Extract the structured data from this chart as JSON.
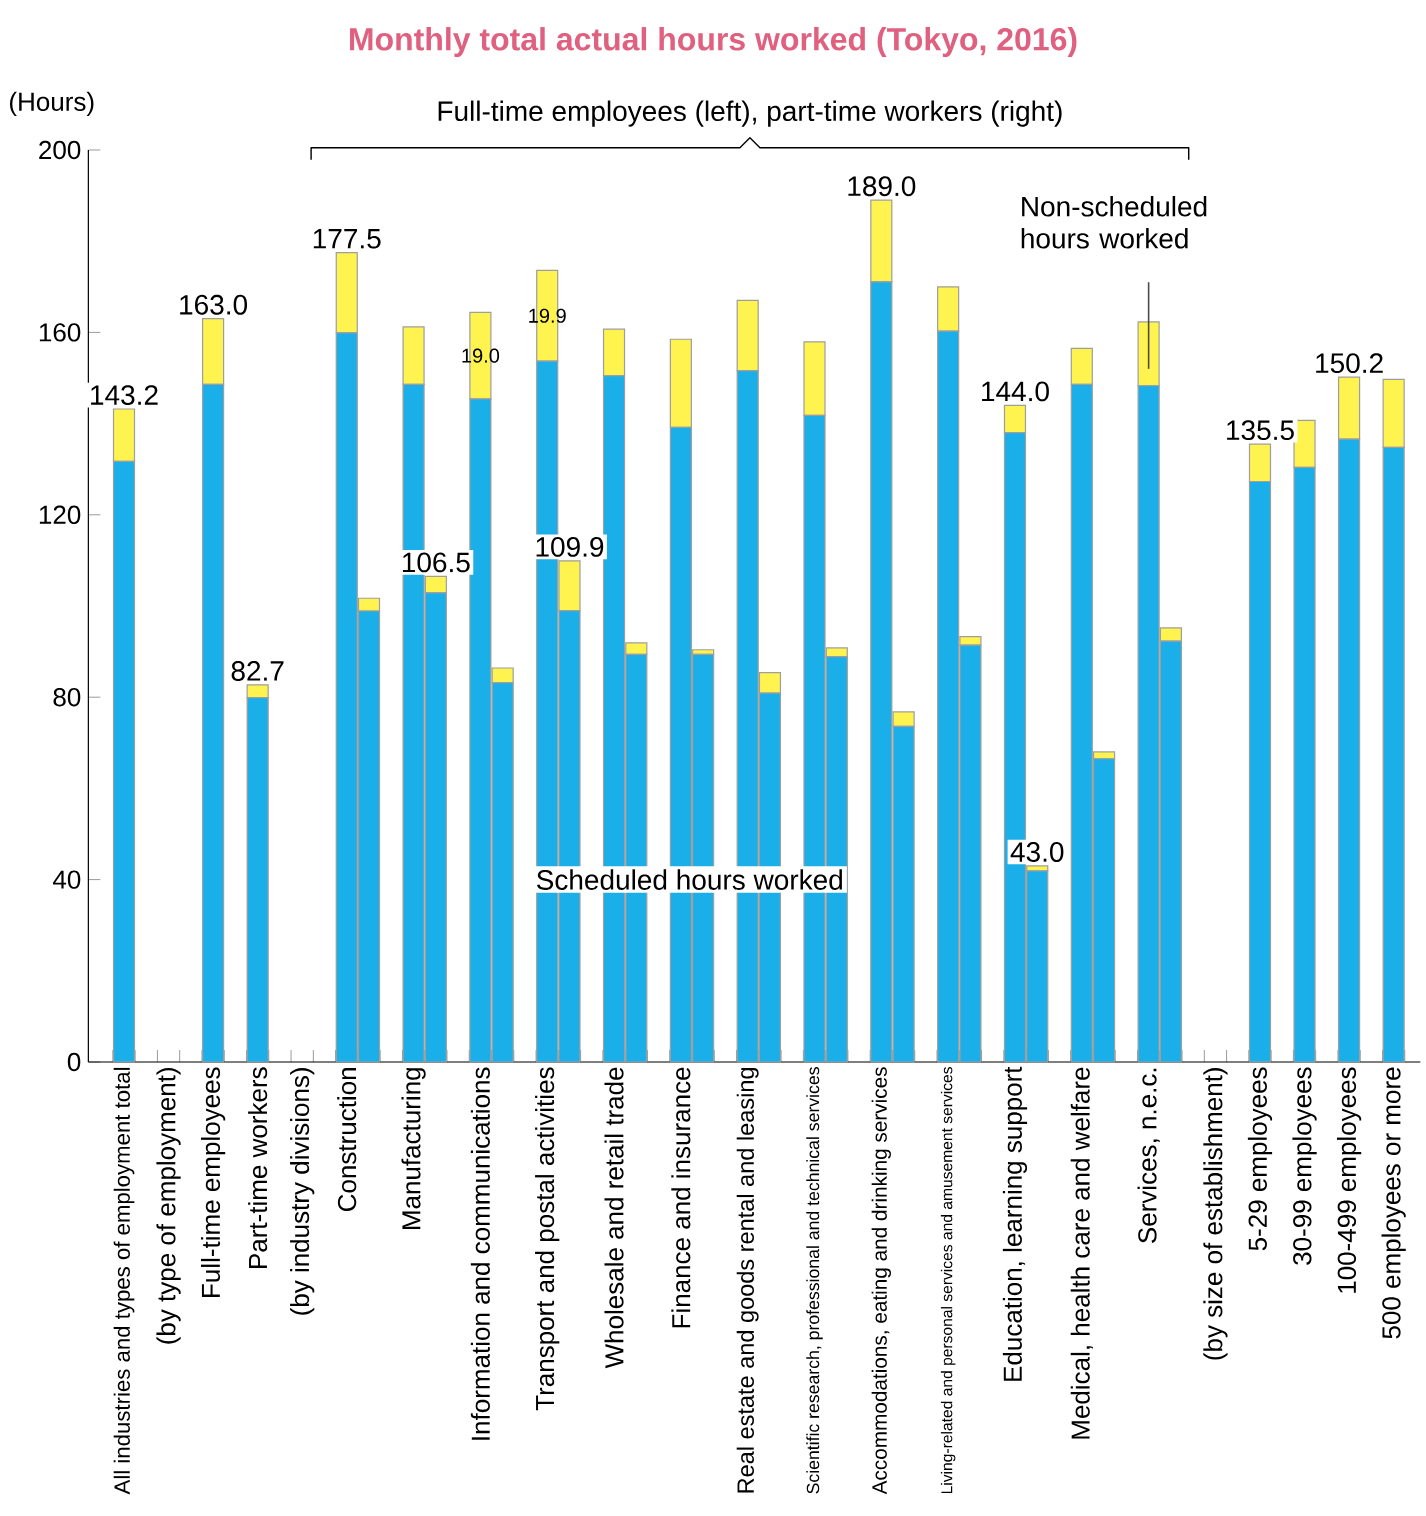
{
  "chart_data": {
    "type": "bar",
    "title": "Monthly total actual hours worked (Tokyo, 2016)",
    "ylabel": "(Hours)",
    "annotations": [
      "Full-time employees (left), part-time workers (right)"
    ],
    "categories": [
      "All industries and types of employment total",
      null,
      "(by type of employment)",
      null,
      "Full-time employees",
      null,
      "Part-time workers",
      null,
      "(by industry divisions)",
      null,
      "Construction",
      null,
      null,
      "Manufacturing",
      null,
      null,
      "Information and communications",
      null,
      null,
      "Transport and postal activities",
      null,
      null,
      "Wholesale and retail trade",
      null,
      null,
      "Finance and insurance",
      null,
      null,
      "Real estate and goods rental and leasing",
      null,
      null,
      "Scientific research, professional and technical services",
      null,
      null,
      "Accommodations, eating and drinking services",
      null,
      null,
      "Living-related and personal services and amusement services",
      null,
      null,
      "Education, learning support",
      null,
      null,
      "Medical, health care and welfare",
      null,
      null,
      "Services, n.e.c.",
      null,
      null,
      "(by size of establishment)",
      null,
      "5-29 employees",
      null,
      "30-99 employees",
      null,
      "100-499 employees",
      null,
      "500 employees or more"
    ],
    "stacked": true,
    "series": [
      {
        "name": "Scheduled hours worked",
        "color": "#1aafe9",
        "values": [
          131.7,
          null,
          null,
          null,
          148.6,
          null,
          79.9,
          null,
          null,
          null,
          159.9,
          98.9,
          null,
          148.6,
          102.9,
          null,
          145.4,
          83.2,
          null,
          153.7,
          99.0,
          null,
          150.5,
          89.4,
          null,
          139.2,
          89.4,
          null,
          151.6,
          80.9,
          null,
          141.8,
          88.9,
          null,
          171.1,
          73.6,
          null,
          160.3,
          91.4,
          null,
          138.0,
          41.9,
          null,
          148.6,
          66.5,
          null,
          148.3,
          92.3,
          null,
          null,
          null,
          127.3,
          null,
          130.4,
          null,
          136.6,
          null,
          134.8
        ]
      },
      {
        "name": "Non-scheduled hours worked",
        "color": "#fff34f",
        "values": [
          11.5,
          null,
          null,
          null,
          14.4,
          null,
          2.8,
          null,
          null,
          null,
          17.6,
          2.8,
          null,
          12.6,
          3.6,
          null,
          19.0,
          3.2,
          null,
          19.9,
          10.9,
          null,
          10.2,
          2.5,
          null,
          19.3,
          1.0,
          null,
          15.4,
          4.5,
          null,
          16.1,
          1.9,
          null,
          17.9,
          3.2,
          null,
          9.7,
          1.9,
          null,
          6.0,
          1.1,
          null,
          7.9,
          1.5,
          null,
          14.0,
          2.9,
          null,
          null,
          null,
          8.2,
          null,
          10.3,
          null,
          13.6,
          null,
          14.9
        ],
        "value_labels": [
          null,
          null,
          null,
          null,
          null,
          null,
          null,
          null,
          null,
          null,
          null,
          null,
          null,
          null,
          null,
          null,
          "19.0",
          null,
          null,
          "19.9",
          null,
          null,
          null,
          null,
          null,
          null,
          null,
          null,
          null,
          null,
          null,
          null,
          null,
          null,
          null,
          null,
          null,
          null,
          null,
          null,
          null,
          null,
          null,
          null,
          null,
          null,
          null,
          null,
          null,
          null,
          null,
          null,
          null,
          null,
          null,
          null,
          null,
          null
        ]
      }
    ],
    "totals": [
      "143.2",
      null,
      null,
      null,
      "163.0",
      null,
      "82.7",
      null,
      null,
      null,
      "177.5",
      null,
      null,
      null,
      "106.5",
      null,
      null,
      null,
      null,
      null,
      "109.9",
      null,
      null,
      null,
      null,
      null,
      null,
      null,
      null,
      null,
      null,
      null,
      null,
      null,
      "189.0",
      null,
      null,
      null,
      null,
      null,
      "144.0",
      "43.0",
      null,
      null,
      null,
      null,
      null,
      null,
      null,
      null,
      null,
      "135.5",
      null,
      null,
      null,
      "150.2",
      null,
      null
    ],
    "ylim": [
      0,
      200
    ],
    "yticks": [
      0,
      40,
      80,
      120,
      160,
      200
    ]
  }
}
